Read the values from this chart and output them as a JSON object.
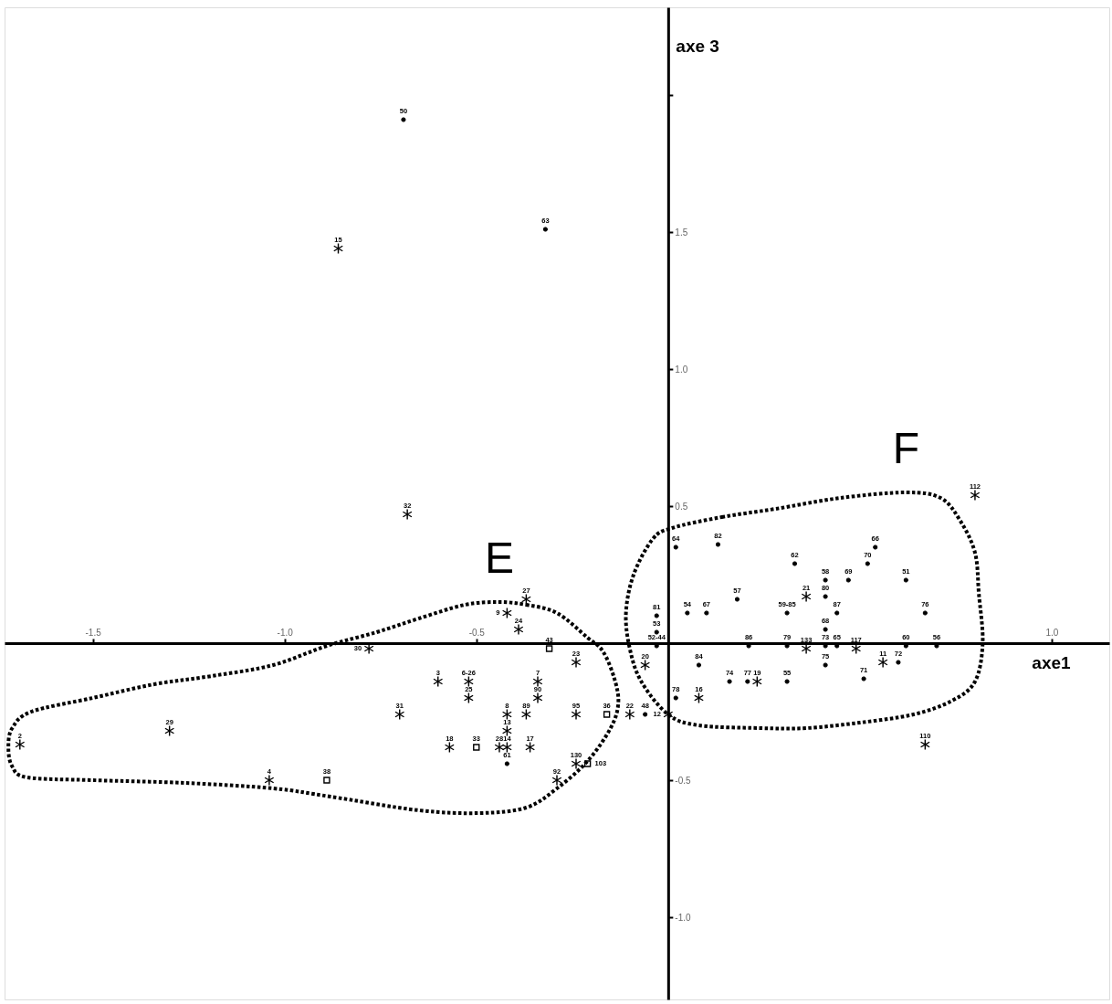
{
  "chart_data": {
    "type": "scatter",
    "xlabel": "axe1",
    "ylabel": "axe 3",
    "xlim": [
      -1.73,
      1.15
    ],
    "ylim": [
      -1.3,
      2.32
    ],
    "xticks": [
      -1.5,
      {
        "value": -1,
        "label": "-1.0"
      },
      -0.5,
      {
        "value": 1,
        "label": "1.0"
      }
    ],
    "yticks": [
      {
        "value": -1,
        "label": "-1.0"
      },
      -0.5,
      0.5,
      {
        "value": 1,
        "label": "1.0"
      },
      1.5,
      {
        "value": 2,
        "label": null
      }
    ],
    "grid": false,
    "series": [
      {
        "type": "scatter",
        "marker": "circle",
        "color": "#000000",
        "x": [
          -0.69,
          -0.32,
          -0.42,
          -0.03,
          -0.06,
          0.02,
          0.13,
          0.33,
          0.54,
          0.52,
          0.41,
          0.47,
          0.41,
          0.18,
          -0.03,
          0.05,
          0.1,
          0.31,
          0.44,
          -0.03,
          0.41,
          0.21,
          0.31,
          0.41,
          0.44,
          0.08,
          0.41,
          0.16,
          0.207,
          0.31,
          0.51,
          0.02,
          0.62,
          0.67,
          0.62,
          0.7,
          0.6
        ],
        "values": [
          1.91,
          1.51,
          -0.44,
          -0.01,
          -0.26,
          0.35,
          0.36,
          0.29,
          0.35,
          0.29,
          0.23,
          0.23,
          0.17,
          0.16,
          0.1,
          0.11,
          0.11,
          0.11,
          0.11,
          0.04,
          0.05,
          -0.01,
          -0.01,
          -0.01,
          -0.01,
          -0.08,
          -0.08,
          -0.14,
          -0.14,
          -0.14,
          -0.13,
          -0.2,
          0.23,
          0.11,
          -0.01,
          -0.01,
          -0.07
        ]
      },
      {
        "type": "scatter",
        "marker": "cross",
        "color": "#000000",
        "x": [
          -0.86,
          -0.68,
          -1.69,
          -1.3,
          -1.04,
          -0.78,
          -0.37,
          -0.42,
          -0.39,
          -0.24,
          -0.06,
          -0.6,
          -0.52,
          -0.52,
          -0.34,
          -0.34,
          -0.7,
          -0.42,
          -0.37,
          -0.24,
          -0.1,
          -0.42,
          -0.57,
          -0.44,
          -0.42,
          -0.36,
          -0.24,
          -0.29,
          0.36,
          0.36,
          0.49,
          0.232,
          0.08,
          0.0,
          0.56,
          0.8,
          0.67
        ],
        "values": [
          1.44,
          0.47,
          -0.37,
          -0.32,
          -0.5,
          -0.02,
          0.16,
          0.11,
          0.05,
          -0.07,
          -0.08,
          -0.14,
          -0.14,
          -0.2,
          -0.14,
          -0.2,
          -0.26,
          -0.26,
          -0.26,
          -0.26,
          -0.26,
          -0.32,
          -0.38,
          -0.38,
          -0.38,
          -0.38,
          -0.44,
          -0.5,
          0.17,
          -0.02,
          -0.02,
          -0.14,
          -0.2,
          -0.26,
          -0.07,
          0.54,
          -0.37
        ]
      },
      {
        "type": "scatter",
        "marker": "square",
        "color": "#000000",
        "x": [
          -0.89,
          -0.31,
          -0.16,
          -0.5,
          -0.21
        ],
        "values": [
          -0.5,
          -0.02,
          -0.26,
          -0.38,
          -0.44
        ]
      }
    ],
    "annotations": [
      "E",
      "F",
      {
        "text": "50",
        "x": -0.69,
        "y": 1.91
      },
      {
        "text": "63",
        "x": -0.32,
        "y": 1.51
      },
      {
        "text": "61",
        "x": -0.42,
        "y": -0.44
      },
      {
        "text": "52-44",
        "x": -0.03,
        "y": -0.01
      },
      {
        "text": "48",
        "x": -0.06,
        "y": -0.26
      },
      {
        "text": "64",
        "x": 0.02,
        "y": 0.35
      },
      {
        "text": "82",
        "x": 0.13,
        "y": 0.36
      },
      {
        "text": "62",
        "x": 0.33,
        "y": 0.29
      },
      {
        "text": "66",
        "x": 0.54,
        "y": 0.35
      },
      {
        "text": "70",
        "x": 0.52,
        "y": 0.29
      },
      {
        "text": "58",
        "x": 0.41,
        "y": 0.23
      },
      {
        "text": "69",
        "x": 0.47,
        "y": 0.23
      },
      {
        "text": "80",
        "x": 0.41,
        "y": 0.17
      },
      {
        "text": "57",
        "x": 0.18,
        "y": 0.16
      },
      {
        "text": "81",
        "x": -0.03,
        "y": 0.1
      },
      {
        "text": "54",
        "x": 0.05,
        "y": 0.11
      },
      {
        "text": "67",
        "x": 0.1,
        "y": 0.11
      },
      {
        "text": "59-85",
        "x": 0.31,
        "y": 0.11
      },
      {
        "text": "87",
        "x": 0.44,
        "y": 0.11
      },
      {
        "text": "53",
        "x": -0.03,
        "y": 0.04
      },
      {
        "text": "68",
        "x": 0.41,
        "y": 0.05
      },
      {
        "text": "86",
        "x": 0.21,
        "y": -0.01
      },
      {
        "text": "79",
        "x": 0.31,
        "y": -0.01
      },
      {
        "text": "73",
        "x": 0.41,
        "y": -0.01
      },
      {
        "text": "65",
        "x": 0.44,
        "y": -0.01
      },
      {
        "text": "84",
        "x": 0.08,
        "y": -0.08
      },
      {
        "text": "75",
        "x": 0.41,
        "y": -0.08
      },
      {
        "text": "74",
        "x": 0.16,
        "y": -0.14
      },
      {
        "text": "77",
        "x": 0.207,
        "y": -0.14
      },
      {
        "text": "55",
        "x": 0.31,
        "y": -0.14
      },
      {
        "text": "71",
        "x": 0.51,
        "y": -0.13
      },
      {
        "text": "78",
        "x": 0.02,
        "y": -0.2
      },
      {
        "text": "51",
        "x": 0.62,
        "y": 0.23
      },
      {
        "text": "76",
        "x": 0.67,
        "y": 0.11
      },
      {
        "text": "60",
        "x": 0.62,
        "y": -0.01
      },
      {
        "text": "56",
        "x": 0.7,
        "y": -0.01
      },
      {
        "text": "72",
        "x": 0.6,
        "y": -0.07
      },
      {
        "text": "15",
        "x": -0.86,
        "y": 1.44
      },
      {
        "text": "32",
        "x": -0.68,
        "y": 0.47
      },
      {
        "text": "2",
        "x": -1.69,
        "y": -0.37
      },
      {
        "text": "29",
        "x": -1.3,
        "y": -0.32
      },
      {
        "text": "4",
        "x": -1.04,
        "y": -0.5
      },
      {
        "text": "30",
        "x": -0.78,
        "y": -0.02
      },
      {
        "text": "27",
        "x": -0.37,
        "y": 0.16
      },
      {
        "text": "9",
        "x": -0.42,
        "y": 0.11
      },
      {
        "text": "24",
        "x": -0.39,
        "y": 0.05
      },
      {
        "text": "23",
        "x": -0.24,
        "y": -0.07
      },
      {
        "text": "20",
        "x": -0.06,
        "y": -0.08
      },
      {
        "text": "3",
        "x": -0.6,
        "y": -0.14
      },
      {
        "text": "6-26",
        "x": -0.52,
        "y": -0.14
      },
      {
        "text": "25",
        "x": -0.52,
        "y": -0.2
      },
      {
        "text": "7",
        "x": -0.34,
        "y": -0.14
      },
      {
        "text": "90",
        "x": -0.34,
        "y": -0.2
      },
      {
        "text": "31",
        "x": -0.7,
        "y": -0.26
      },
      {
        "text": "8",
        "x": -0.42,
        "y": -0.26
      },
      {
        "text": "89",
        "x": -0.37,
        "y": -0.26
      },
      {
        "text": "95",
        "x": -0.24,
        "y": -0.26
      },
      {
        "text": "22",
        "x": -0.1,
        "y": -0.26
      },
      {
        "text": "13",
        "x": -0.42,
        "y": -0.32
      },
      {
        "text": "18",
        "x": -0.57,
        "y": -0.38
      },
      {
        "text": "28",
        "x": -0.44,
        "y": -0.38
      },
      {
        "text": "14",
        "x": -0.42,
        "y": -0.38
      },
      {
        "text": "17",
        "x": -0.36,
        "y": -0.38
      },
      {
        "text": "130",
        "x": -0.24,
        "y": -0.44
      },
      {
        "text": "92",
        "x": -0.29,
        "y": -0.5
      },
      {
        "text": "21",
        "x": 0.36,
        "y": 0.17
      },
      {
        "text": "133",
        "x": 0.36,
        "y": -0.02
      },
      {
        "text": "117",
        "x": 0.49,
        "y": -0.02
      },
      {
        "text": "19",
        "x": 0.232,
        "y": -0.14
      },
      {
        "text": "16",
        "x": 0.08,
        "y": -0.2
      },
      {
        "text": "12",
        "x": 0.0,
        "y": -0.26
      },
      {
        "text": "11",
        "x": 0.56,
        "y": -0.07
      },
      {
        "text": "112",
        "x": 0.8,
        "y": 0.54
      },
      {
        "text": "110",
        "x": 0.67,
        "y": -0.37
      },
      {
        "text": "38",
        "x": -0.89,
        "y": -0.5
      },
      {
        "text": "43",
        "x": -0.31,
        "y": -0.02
      },
      {
        "text": "36",
        "x": -0.16,
        "y": -0.26
      },
      {
        "text": "33",
        "x": -0.5,
        "y": -0.38
      },
      {
        "text": "103",
        "x": -0.21,
        "y": -0.44
      }
    ]
  }
}
